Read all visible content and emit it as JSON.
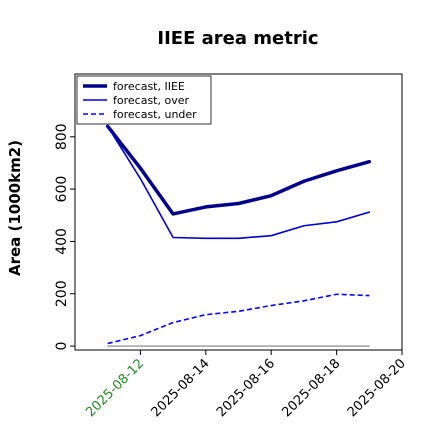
{
  "chart_data": {
    "type": "line",
    "title": "IIEE area metric",
    "xlabel": "",
    "ylabel": "Area (1000km2)",
    "x": [
      "2025-08-11",
      "2025-08-12",
      "2025-08-13",
      "2025-08-14",
      "2025-08-15",
      "2025-08-16",
      "2025-08-17",
      "2025-08-18",
      "2025-08-19"
    ],
    "xticks": [
      "2025-08-12",
      "2025-08-14",
      "2025-08-16",
      "2025-08-18",
      "2025-08-20"
    ],
    "xlim": [
      "2025-08-10",
      "2025-08-20"
    ],
    "yticks": [
      0,
      200,
      400,
      600,
      800
    ],
    "ylim": [
      -15,
      1040
    ],
    "grid": false,
    "legend_position": "top-left",
    "series": [
      {
        "name": "forecast, IIEE",
        "color": "#00008b",
        "style": "solid-thick",
        "values": [
          840,
          680,
          505,
          532,
          545,
          575,
          630,
          670,
          705
        ]
      },
      {
        "name": "forecast, over",
        "color": "#0000cd",
        "style": "solid",
        "values": [
          840,
          640,
          415,
          412,
          412,
          422,
          460,
          475,
          512
        ]
      },
      {
        "name": "forecast, under",
        "color": "#0000ff",
        "style": "dashed",
        "values": [
          10,
          40,
          90,
          120,
          133,
          155,
          173,
          198,
          193
        ]
      },
      {
        "name": "",
        "color": "#808080",
        "style": "solid-thin",
        "values": [
          0,
          0,
          0,
          0,
          0,
          0,
          0,
          0,
          0
        ]
      }
    ]
  }
}
